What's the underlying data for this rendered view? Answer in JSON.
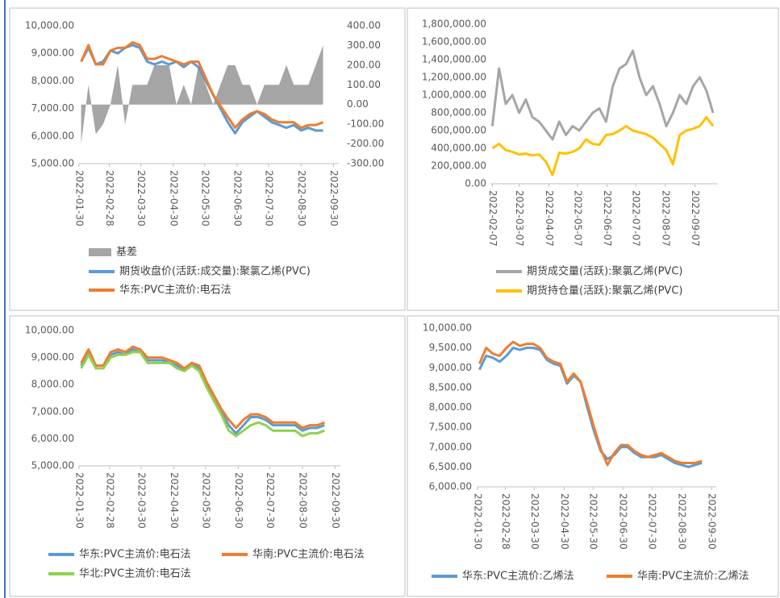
{
  "chart_data": [
    {
      "type": "line",
      "legend": "bottom",
      "grid": false,
      "x": [
        "2022-02-01",
        "2022-02-08",
        "2022-02-15",
        "2022-02-22",
        "2022-03-01",
        "2022-03-08",
        "2022-03-15",
        "2022-03-22",
        "2022-03-29",
        "2022-04-05",
        "2022-04-12",
        "2022-04-19",
        "2022-04-26",
        "2022-05-03",
        "2022-05-10",
        "2022-05-17",
        "2022-05-24",
        "2022-05-31",
        "2022-06-07",
        "2022-06-14",
        "2022-06-21",
        "2022-06-28",
        "2022-07-05",
        "2022-07-12",
        "2022-07-19",
        "2022-07-26",
        "2022-08-02",
        "2022-08-09",
        "2022-08-16",
        "2022-08-23",
        "2022-08-30",
        "2022-09-06",
        "2022-09-13",
        "2022-09-20"
      ],
      "xlim": [
        "2022-01-30",
        "2022-10-05"
      ],
      "xticks": [
        "2022-01-30",
        "2022-02-28",
        "2022-03-30",
        "2022-04-30",
        "2022-05-30",
        "2022-06-30",
        "2022-07-30",
        "2022-08-30",
        "2022-09-30"
      ],
      "ylim": [
        5000,
        10000
      ],
      "yticks": [
        {
          "value": 5000,
          "label": "5,000.00"
        },
        {
          "value": 6000,
          "label": "6,000.00"
        },
        {
          "value": 7000,
          "label": "7,000.00"
        },
        {
          "value": 8000,
          "label": "8,000.00"
        },
        {
          "value": 9000,
          "label": "9,000.00"
        },
        {
          "value": 10000,
          "label": "10,000.00"
        }
      ],
      "y2lim": [
        -300,
        400
      ],
      "y2ticks": [
        {
          "value": -300,
          "label": "-300.00"
        },
        {
          "value": -200,
          "label": "-200.00"
        },
        {
          "value": -100,
          "label": "-100.00"
        },
        {
          "value": 0,
          "label": "0.00"
        },
        {
          "value": 100,
          "label": "100.00"
        },
        {
          "value": 200,
          "label": "200.00"
        },
        {
          "value": 300,
          "label": "300.00"
        },
        {
          "value": 400,
          "label": "400.00"
        }
      ],
      "series": [
        {
          "name": "基差",
          "color": "#a5a5a5",
          "kind": "area",
          "axis": "y2",
          "values": [
            -200,
            100,
            -150,
            -100,
            0,
            200,
            -100,
            100,
            100,
            100,
            200,
            200,
            200,
            0,
            100,
            0,
            200,
            100,
            0,
            100,
            200,
            200,
            100,
            100,
            0,
            100,
            100,
            100,
            200,
            100,
            100,
            100,
            200,
            300
          ]
        },
        {
          "name": "期货收盘价(活跃:成交量):聚氯乙烯(PVC)",
          "color": "#5b9bd5",
          "values": [
            8700,
            9200,
            8600,
            8700,
            9100,
            9000,
            9200,
            9300,
            9200,
            8700,
            8600,
            8700,
            8600,
            8700,
            8500,
            8700,
            8500,
            8000,
            7500,
            7000,
            6500,
            6100,
            6500,
            6700,
            6900,
            6700,
            6500,
            6400,
            6300,
            6400,
            6200,
            6300,
            6200,
            6200
          ]
        },
        {
          "name": "华东:PVC主流价:电石法",
          "color": "#ed7d31",
          "values": [
            8700,
            9300,
            8600,
            8600,
            9100,
            9200,
            9200,
            9400,
            9300,
            8800,
            8800,
            8900,
            8800,
            8700,
            8600,
            8700,
            8700,
            8100,
            7500,
            7100,
            6700,
            6300,
            6600,
            6800,
            6900,
            6800,
            6600,
            6500,
            6500,
            6500,
            6300,
            6400,
            6400,
            6500
          ]
        }
      ]
    },
    {
      "type": "line",
      "legend": "bottom",
      "grid": false,
      "x": [
        "2022-02-07",
        "2022-02-14",
        "2022-02-21",
        "2022-02-28",
        "2022-03-07",
        "2022-03-14",
        "2022-03-21",
        "2022-03-28",
        "2022-04-04",
        "2022-04-11",
        "2022-04-18",
        "2022-04-25",
        "2022-05-02",
        "2022-05-09",
        "2022-05-16",
        "2022-05-23",
        "2022-05-30",
        "2022-06-06",
        "2022-06-13",
        "2022-06-20",
        "2022-06-27",
        "2022-07-04",
        "2022-07-11",
        "2022-07-18",
        "2022-07-25",
        "2022-08-01",
        "2022-08-08",
        "2022-08-15",
        "2022-08-22",
        "2022-08-29",
        "2022-09-05",
        "2022-09-12",
        "2022-09-19",
        "2022-09-26"
      ],
      "xlim": [
        "2022-02-05",
        "2022-10-01"
      ],
      "xticks": [
        "2022-02-07",
        "2022-03-07",
        "2022-04-07",
        "2022-05-07",
        "2022-06-07",
        "2022-07-07",
        "2022-08-07",
        "2022-09-07"
      ],
      "ylim": [
        0,
        1800000
      ],
      "yticks": [
        {
          "value": 0,
          "label": "0.00"
        },
        {
          "value": 200000,
          "label": "200,000.00"
        },
        {
          "value": 400000,
          "label": "400,000.00"
        },
        {
          "value": 600000,
          "label": "600,000.00"
        },
        {
          "value": 800000,
          "label": "800,000.00"
        },
        {
          "value": 1000000,
          "label": "1,000,000.00"
        },
        {
          "value": 1200000,
          "label": "1,200,000.00"
        },
        {
          "value": 1400000,
          "label": "1,400,000.00"
        },
        {
          "value": 1600000,
          "label": "1,600,000.00"
        },
        {
          "value": 1800000,
          "label": "1,800,000.00"
        }
      ],
      "series": [
        {
          "name": "期货成交量(活跃):聚氯乙烯(PVC)",
          "color": "#a5a5a5",
          "values": [
            650000,
            1300000,
            900000,
            1000000,
            800000,
            950000,
            750000,
            700000,
            600000,
            500000,
            700000,
            550000,
            650000,
            600000,
            700000,
            800000,
            850000,
            700000,
            1100000,
            1300000,
            1350000,
            1500000,
            1200000,
            1000000,
            1100000,
            900000,
            650000,
            800000,
            1000000,
            900000,
            1100000,
            1200000,
            1050000,
            800000
          ]
        },
        {
          "name": "期货持仓量(活跃):聚氯乙烯(PVC)",
          "color": "#ffc000",
          "values": [
            400000,
            450000,
            380000,
            360000,
            330000,
            340000,
            320000,
            330000,
            250000,
            100000,
            350000,
            340000,
            360000,
            400000,
            500000,
            450000,
            440000,
            550000,
            560000,
            600000,
            650000,
            600000,
            580000,
            560000,
            520000,
            450000,
            380000,
            220000,
            550000,
            600000,
            620000,
            650000,
            750000,
            650000
          ]
        }
      ]
    },
    {
      "type": "line",
      "legend": "bottom",
      "grid": false,
      "x": [
        "2022-02-01",
        "2022-02-08",
        "2022-02-15",
        "2022-02-22",
        "2022-03-01",
        "2022-03-08",
        "2022-03-15",
        "2022-03-22",
        "2022-03-29",
        "2022-04-05",
        "2022-04-12",
        "2022-04-19",
        "2022-04-26",
        "2022-05-03",
        "2022-05-10",
        "2022-05-17",
        "2022-05-24",
        "2022-05-31",
        "2022-06-07",
        "2022-06-14",
        "2022-06-21",
        "2022-06-28",
        "2022-07-05",
        "2022-07-12",
        "2022-07-19",
        "2022-07-26",
        "2022-08-02",
        "2022-08-09",
        "2022-08-16",
        "2022-08-23",
        "2022-08-30",
        "2022-09-06",
        "2022-09-13",
        "2022-09-20"
      ],
      "xlim": [
        "2022-01-30",
        "2022-10-05"
      ],
      "xticks": [
        "2022-01-30",
        "2022-02-28",
        "2022-03-30",
        "2022-04-30",
        "2022-05-30",
        "2022-06-30",
        "2022-07-30",
        "2022-08-30",
        "2022-09-30"
      ],
      "ylim": [
        5000,
        10000
      ],
      "yticks": [
        {
          "value": 5000,
          "label": "5,000.00"
        },
        {
          "value": 6000,
          "label": "6,000.00"
        },
        {
          "value": 7000,
          "label": "7,000.00"
        },
        {
          "value": 8000,
          "label": "8,000.00"
        },
        {
          "value": 9000,
          "label": "9,000.00"
        },
        {
          "value": 10000,
          "label": "10,000.00"
        }
      ],
      "series": [
        {
          "name": "华东:PVC主流价:电石法",
          "color": "#5b9bd5",
          "values": [
            8700,
            9200,
            8600,
            8600,
            9100,
            9200,
            9100,
            9300,
            9200,
            8900,
            8900,
            8900,
            8800,
            8700,
            8500,
            8800,
            8600,
            8000,
            7500,
            7000,
            6500,
            6200,
            6500,
            6800,
            6800,
            6700,
            6500,
            6500,
            6500,
            6500,
            6300,
            6400,
            6400,
            6500
          ]
        },
        {
          "name": "华南:PVC主流价:电石法",
          "color": "#ed7d31",
          "values": [
            8800,
            9300,
            8700,
            8700,
            9200,
            9300,
            9200,
            9400,
            9300,
            9000,
            9000,
            9000,
            8900,
            8800,
            8600,
            8800,
            8700,
            8100,
            7600,
            7100,
            6700,
            6400,
            6700,
            6900,
            6900,
            6800,
            6600,
            6600,
            6600,
            6600,
            6400,
            6500,
            6500,
            6600
          ]
        },
        {
          "name": "华北:PVC主流价:电石法",
          "color": "#8fd14f",
          "values": [
            8600,
            9100,
            8600,
            8600,
            9000,
            9100,
            9100,
            9200,
            9200,
            8800,
            8800,
            8800,
            8800,
            8600,
            8500,
            8700,
            8500,
            7900,
            7400,
            6900,
            6300,
            6100,
            6300,
            6500,
            6600,
            6500,
            6300,
            6300,
            6300,
            6300,
            6100,
            6200,
            6200,
            6300
          ]
        }
      ]
    },
    {
      "type": "line",
      "legend": "bottom",
      "grid": false,
      "x": [
        "2022-02-01",
        "2022-02-08",
        "2022-02-15",
        "2022-02-22",
        "2022-03-01",
        "2022-03-08",
        "2022-03-15",
        "2022-03-22",
        "2022-03-29",
        "2022-04-05",
        "2022-04-12",
        "2022-04-19",
        "2022-04-26",
        "2022-05-03",
        "2022-05-10",
        "2022-05-17",
        "2022-05-24",
        "2022-05-31",
        "2022-06-07",
        "2022-06-14",
        "2022-06-21",
        "2022-06-28",
        "2022-07-05",
        "2022-07-12",
        "2022-07-19",
        "2022-07-26",
        "2022-08-02",
        "2022-08-09",
        "2022-08-16",
        "2022-08-23",
        "2022-08-30",
        "2022-09-06",
        "2022-09-13",
        "2022-09-20"
      ],
      "xlim": [
        "2022-01-30",
        "2022-10-05"
      ],
      "xticks": [
        "2022-01-30",
        "2022-02-28",
        "2022-03-30",
        "2022-04-30",
        "2022-05-30",
        "2022-06-30",
        "2022-07-30",
        "2022-08-30",
        "2022-09-30"
      ],
      "ylim": [
        6000,
        10000
      ],
      "yticks": [
        {
          "value": 6000,
          "label": "6,000.00"
        },
        {
          "value": 6500,
          "label": "6,500.00"
        },
        {
          "value": 7000,
          "label": "7,000.00"
        },
        {
          "value": 7500,
          "label": "7,500.00"
        },
        {
          "value": 8000,
          "label": "8,000.00"
        },
        {
          "value": 8500,
          "label": "8,500.00"
        },
        {
          "value": 9000,
          "label": "9,000.00"
        },
        {
          "value": 9500,
          "label": "9,500.00"
        },
        {
          "value": 10000,
          "label": "10,000.00"
        }
      ],
      "series": [
        {
          "name": "华东:PVC主流价:乙烯法",
          "color": "#5b9bd5",
          "values": [
            8950,
            9300,
            9250,
            9150,
            9300,
            9500,
            9450,
            9500,
            9500,
            9450,
            9200,
            9100,
            9050,
            8600,
            8800,
            8650,
            8000,
            7400,
            6900,
            6700,
            6800,
            7000,
            7000,
            6850,
            6750,
            6750,
            6750,
            6800,
            6700,
            6600,
            6550,
            6500,
            6550,
            6600
          ]
        },
        {
          "name": "华南:PVC主流价:乙烯法",
          "color": "#ed7d31",
          "values": [
            9100,
            9500,
            9350,
            9300,
            9500,
            9650,
            9550,
            9600,
            9600,
            9500,
            9250,
            9150,
            9100,
            8650,
            8850,
            8650,
            8100,
            7500,
            6950,
            6550,
            6850,
            7050,
            7050,
            6900,
            6800,
            6750,
            6800,
            6850,
            6750,
            6650,
            6600,
            6600,
            6600,
            6650
          ]
        }
      ]
    }
  ]
}
